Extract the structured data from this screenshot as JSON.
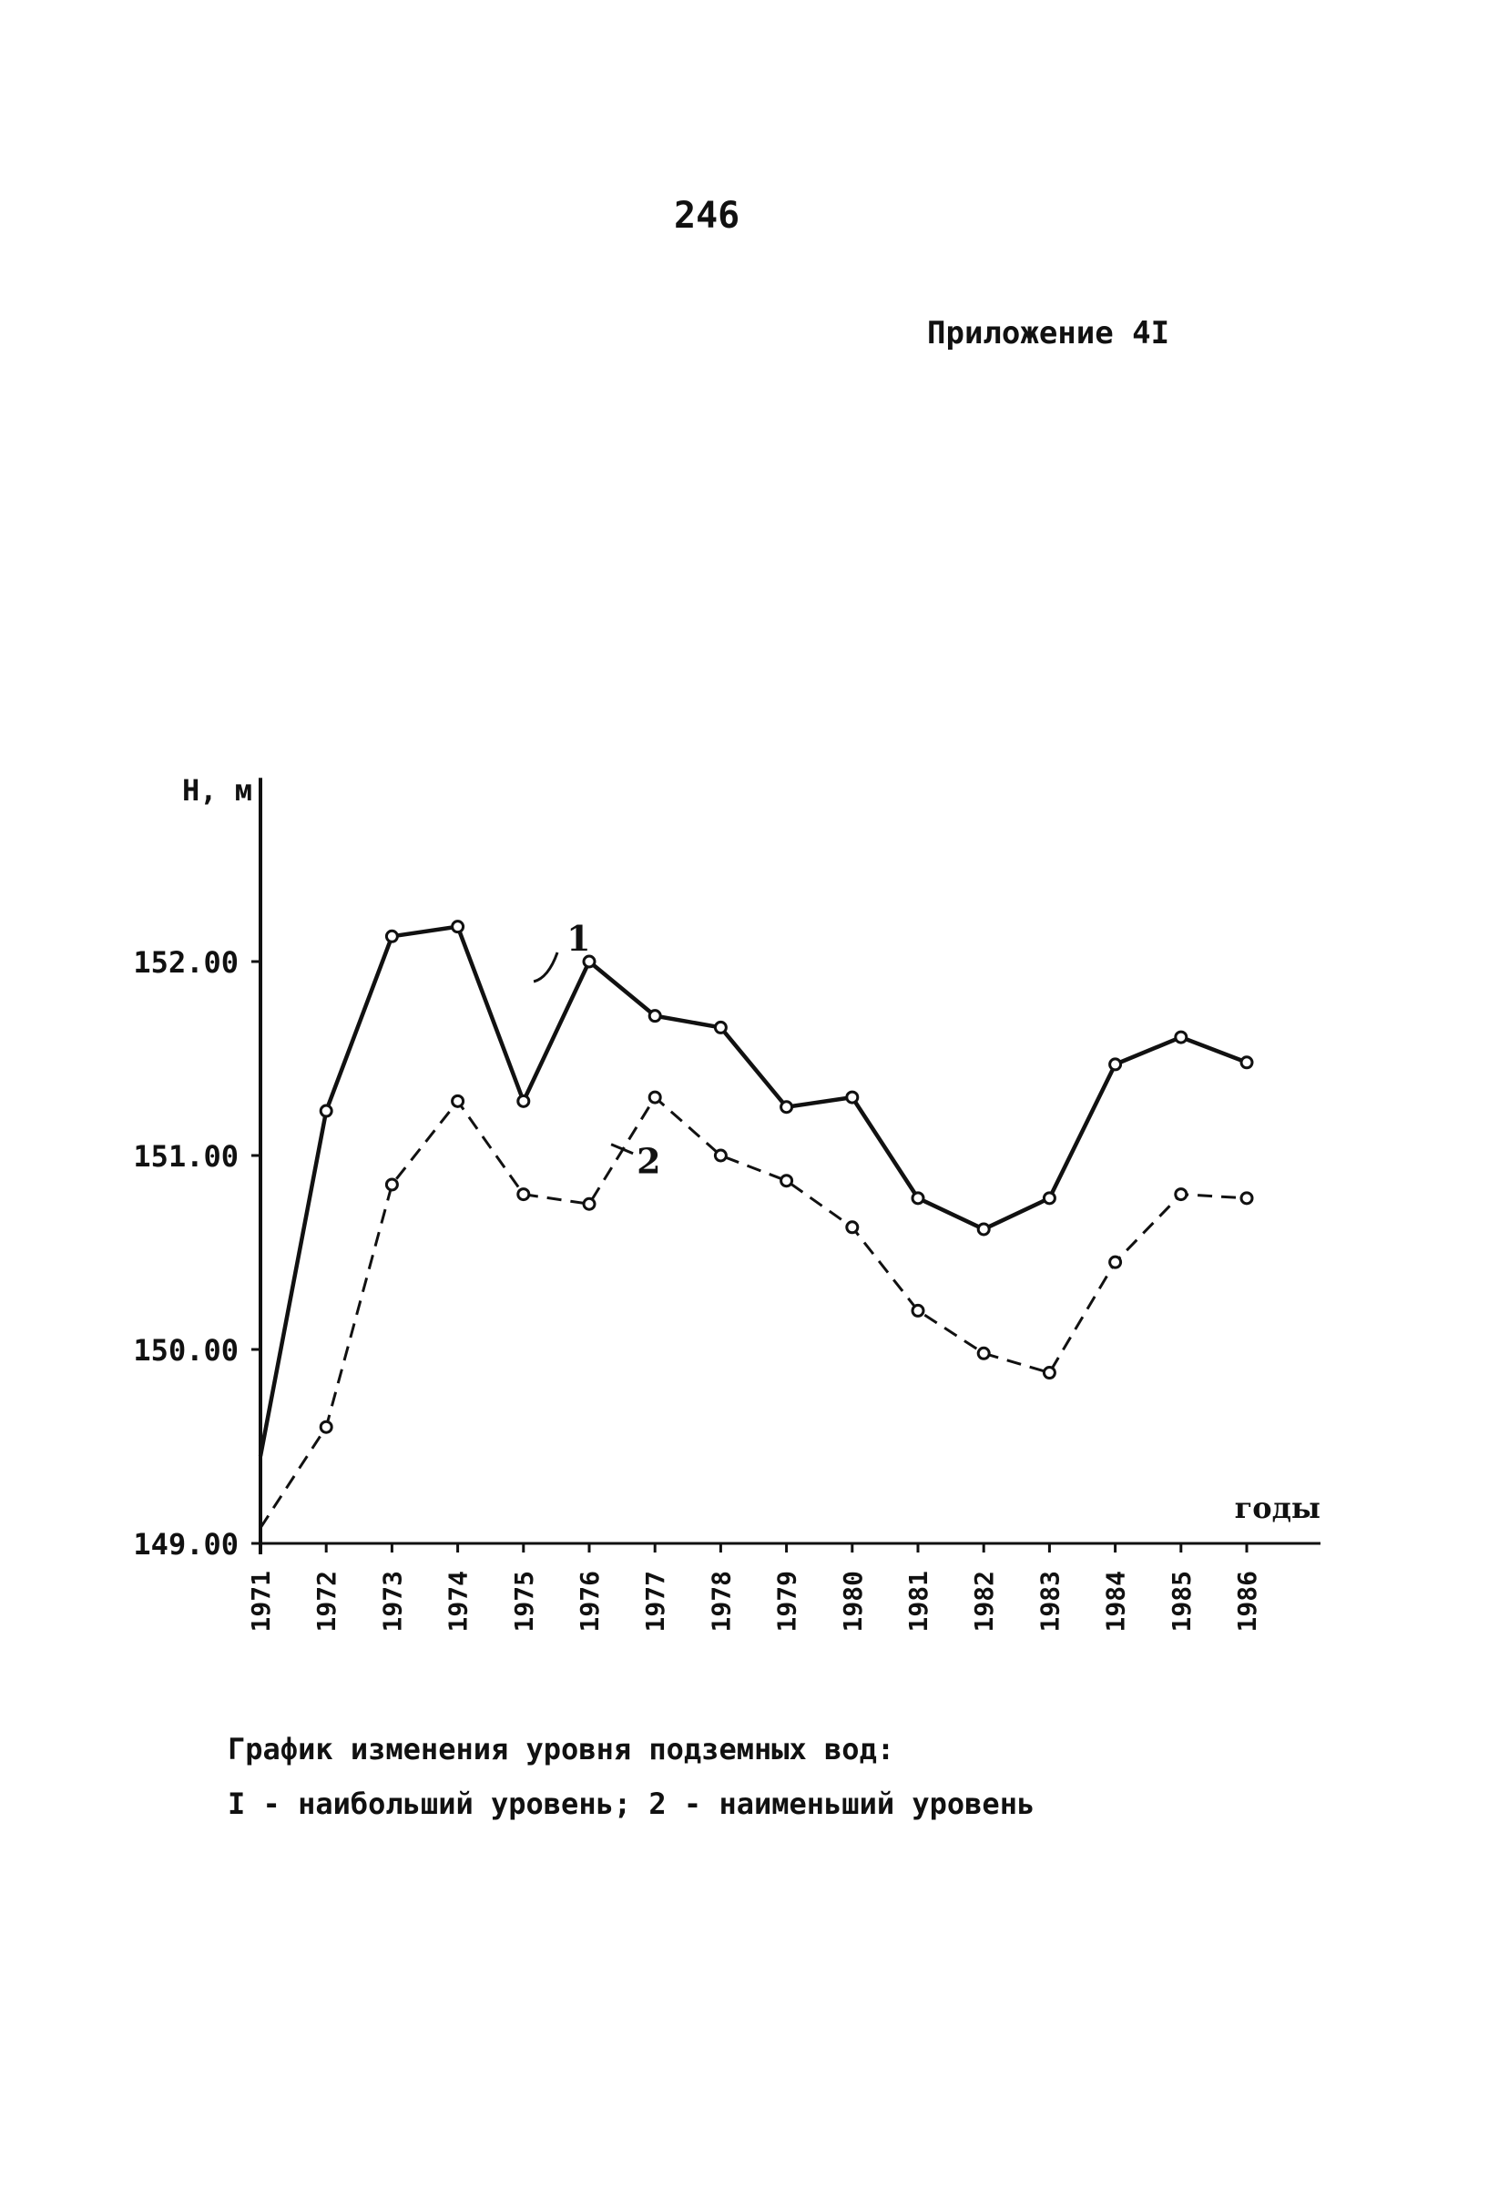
{
  "page": {
    "number": "246",
    "appendix": "Приложение 4I"
  },
  "caption": {
    "line1": "График изменения уровня подземных вод:",
    "line2": "I - наибольший уровень; 2 - наименьший уровень"
  },
  "chart_data": {
    "type": "line",
    "ylabel": "H, м",
    "xlabel": "годы",
    "ylim": [
      149.0,
      152.9
    ],
    "yticks": [
      "149.00",
      "150.00",
      "151.00",
      "152.00"
    ],
    "categories": [
      "1971",
      "1972",
      "1973",
      "1974",
      "1975",
      "1976",
      "1977",
      "1978",
      "1979",
      "1980",
      "1981",
      "1982",
      "1983",
      "1984",
      "1985",
      "1986"
    ],
    "series": [
      {
        "name": "1",
        "style": "solid",
        "values": [
          149.45,
          151.23,
          152.13,
          152.18,
          151.28,
          152.0,
          151.72,
          151.66,
          151.25,
          151.3,
          150.78,
          150.62,
          150.78,
          151.47,
          151.61,
          151.48
        ]
      },
      {
        "name": "2",
        "style": "dashed",
        "values": [
          149.08,
          149.6,
          150.85,
          151.28,
          150.8,
          150.75,
          151.3,
          151.0,
          150.87,
          150.63,
          150.2,
          149.98,
          149.88,
          150.45,
          150.8,
          150.78
        ]
      }
    ],
    "grid": false,
    "color": "#111111"
  }
}
